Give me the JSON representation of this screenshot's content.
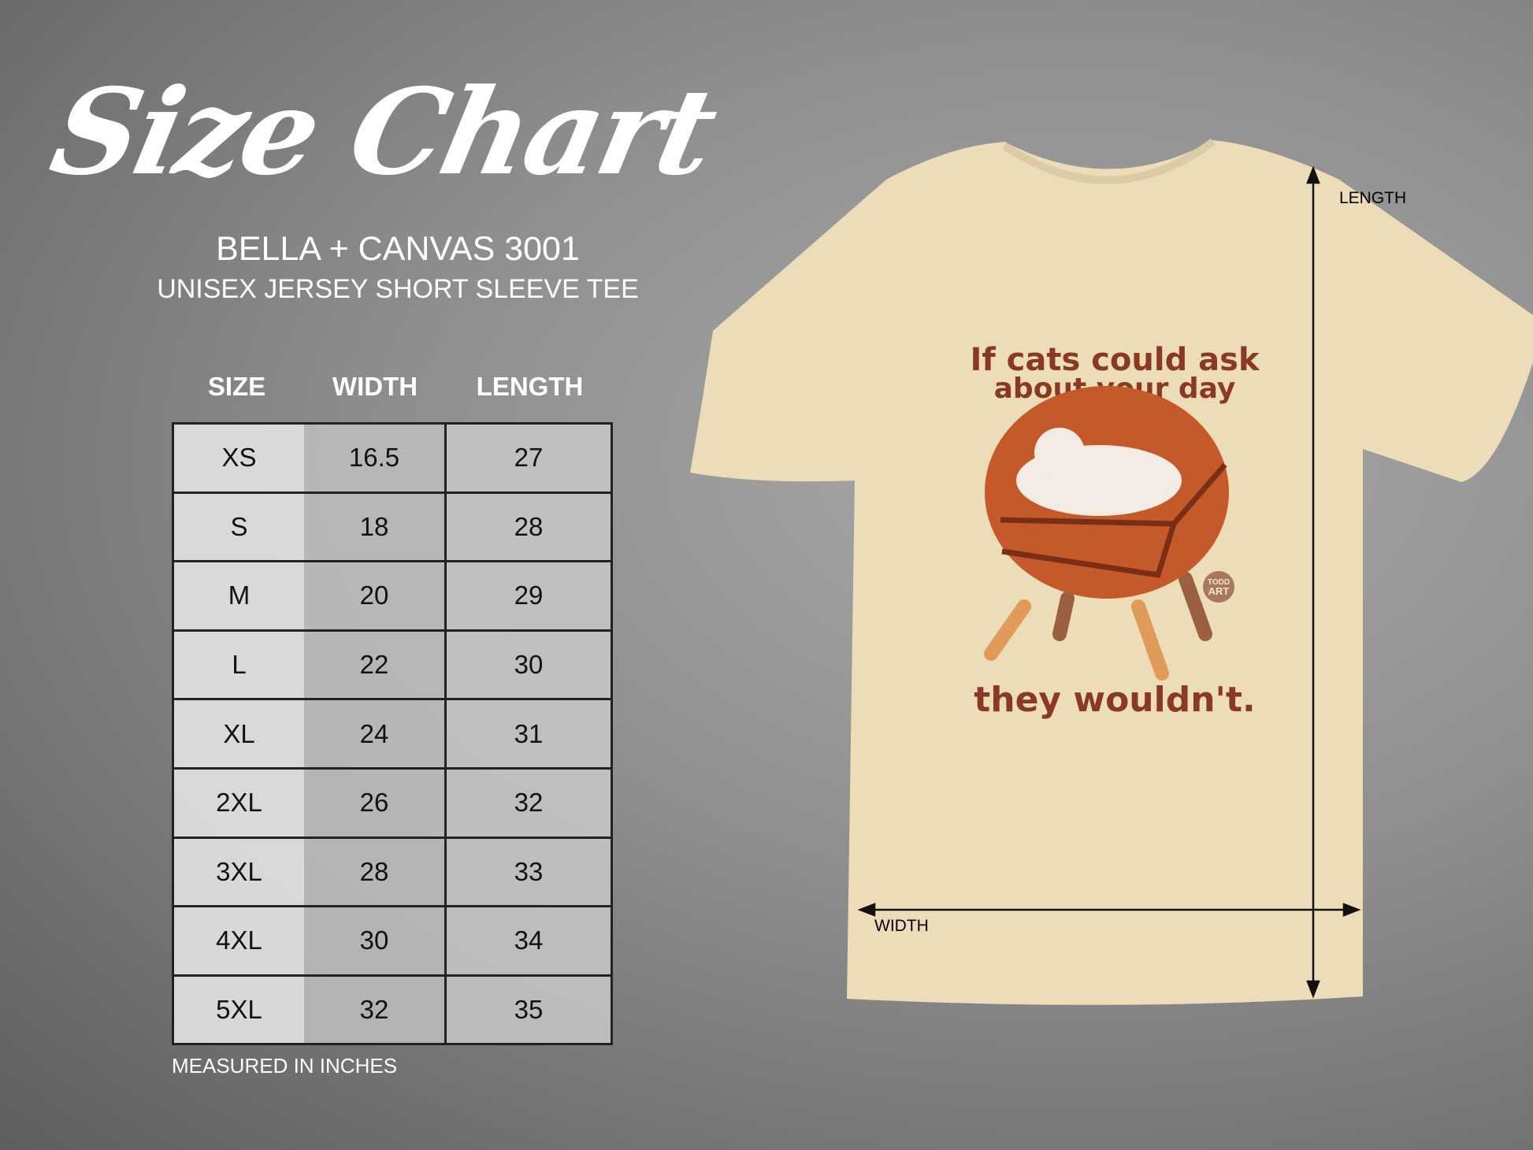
{
  "title": "Size Chart",
  "brand": "BELLA + CANVAS 3001",
  "subtitle": "UNISEX JERSEY SHORT SLEEVE TEE",
  "table": {
    "headers": [
      "SIZE",
      "WIDTH",
      "LENGTH"
    ],
    "rows": [
      [
        "XS",
        "16.5",
        "27"
      ],
      [
        "S",
        "18",
        "28"
      ],
      [
        "M",
        "20",
        "29"
      ],
      [
        "L",
        "22",
        "30"
      ],
      [
        "XL",
        "24",
        "31"
      ],
      [
        "2XL",
        "26",
        "32"
      ],
      [
        "3XL",
        "28",
        "33"
      ],
      [
        "4XL",
        "30",
        "34"
      ],
      [
        "5XL",
        "32",
        "35"
      ]
    ]
  },
  "note": "MEASURED IN INCHES",
  "shirt": {
    "length_label": "LENGTH",
    "width_label": "WIDTH",
    "design_line1": "If cats could ask",
    "design_line2": "about your day",
    "design_line3": "they wouldn't.",
    "logo_line1": "TODD",
    "logo_line2": "ART",
    "colors": {
      "shirt": "#ecdcb8",
      "chair": "#c45a2a",
      "text": "#8a3a22"
    }
  }
}
